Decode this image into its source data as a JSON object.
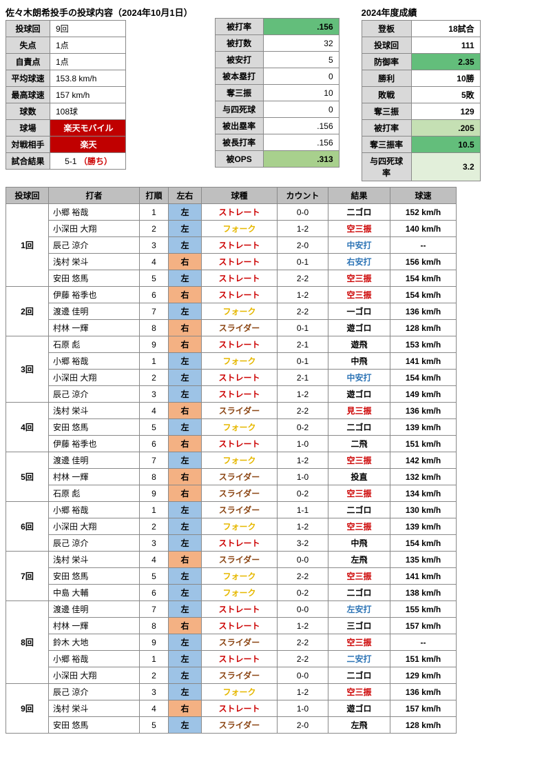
{
  "titles": {
    "left": "佐々木朗希投手の投球内容（2024年10月1日）",
    "right": "2024年度成績"
  },
  "summary1": [
    {
      "k": "投球回",
      "v": "9回"
    },
    {
      "k": "失点",
      "v": "1点"
    },
    {
      "k": "自責点",
      "v": "1点"
    },
    {
      "k": "平均球速",
      "v": "153.8 km/h"
    },
    {
      "k": "最高球速",
      "v": "157 km/h"
    },
    {
      "k": "球数",
      "v": "108球"
    },
    {
      "k": "球場",
      "v": "楽天モバイル",
      "red": true
    },
    {
      "k": "対戦相手",
      "v": "楽天",
      "red": true
    },
    {
      "k": "試合結果",
      "v": "5-1",
      "win": "（勝ち）"
    }
  ],
  "summary2": [
    {
      "k": "被打率",
      "v": ".156",
      "shade": "g1"
    },
    {
      "k": "被打数",
      "v": "32"
    },
    {
      "k": "被安打",
      "v": "5"
    },
    {
      "k": "被本塁打",
      "v": "0"
    },
    {
      "k": "奪三振",
      "v": "10"
    },
    {
      "k": "与四死球",
      "v": "0"
    },
    {
      "k": "被出塁率",
      "v": ".156"
    },
    {
      "k": "被長打率",
      "v": ".156"
    },
    {
      "k": "被OPS",
      "v": ".313",
      "shade": "g2"
    }
  ],
  "season": [
    {
      "k": "登板",
      "v": "18試合"
    },
    {
      "k": "投球回",
      "v": "111"
    },
    {
      "k": "防御率",
      "v": "2.35",
      "shade": "g1"
    },
    {
      "k": "勝利",
      "v": "10勝"
    },
    {
      "k": "敗戦",
      "v": "5敗"
    },
    {
      "k": "奪三振",
      "v": "129"
    },
    {
      "k": "被打率",
      "v": ".205",
      "shade": "g3"
    },
    {
      "k": "奪三振率",
      "v": "10.5",
      "shade": "g1"
    },
    {
      "k": "与四死球率",
      "v": "3.2",
      "shade": "g4"
    }
  ],
  "cols": [
    "投球回",
    "打者",
    "打順",
    "左右",
    "球種",
    "カウント",
    "結果",
    "球速"
  ],
  "pitches": [
    {
      "in": "1回",
      "b": "小郷 裕哉",
      "o": "1",
      "h": "左",
      "p": "ストレート",
      "pc": "st",
      "c": "0-0",
      "r": "二ゴロ",
      "rc": "n",
      "v": "152 km/h"
    },
    {
      "in": "",
      "b": "小深田 大翔",
      "o": "2",
      "h": "左",
      "p": "フォーク",
      "pc": "fk",
      "c": "1-2",
      "r": "空三振",
      "rc": "k",
      "v": "140 km/h"
    },
    {
      "in": "",
      "b": "辰己 涼介",
      "o": "3",
      "h": "左",
      "p": "ストレート",
      "pc": "st",
      "c": "2-0",
      "r": "中安打",
      "rc": "h",
      "v": "--"
    },
    {
      "in": "",
      "b": "浅村 栄斗",
      "o": "4",
      "h": "右",
      "p": "ストレート",
      "pc": "st",
      "c": "0-1",
      "r": "右安打",
      "rc": "h",
      "v": "156 km/h"
    },
    {
      "in": "",
      "b": "安田 悠馬",
      "o": "5",
      "h": "左",
      "p": "ストレート",
      "pc": "st",
      "c": "2-2",
      "r": "空三振",
      "rc": "k",
      "v": "154 km/h"
    },
    {
      "in": "2回",
      "b": "伊藤 裕季也",
      "o": "6",
      "h": "右",
      "p": "ストレート",
      "pc": "st",
      "c": "1-2",
      "r": "空三振",
      "rc": "k",
      "v": "154 km/h"
    },
    {
      "in": "",
      "b": "渡邊 佳明",
      "o": "7",
      "h": "左",
      "p": "フォーク",
      "pc": "fk",
      "c": "2-2",
      "r": "一ゴロ",
      "rc": "n",
      "v": "136 km/h"
    },
    {
      "in": "",
      "b": "村林 一輝",
      "o": "8",
      "h": "右",
      "p": "スライダー",
      "pc": "sl",
      "c": "0-1",
      "r": "遊ゴロ",
      "rc": "n",
      "v": "128 km/h"
    },
    {
      "in": "3回",
      "b": "石原 彪",
      "o": "9",
      "h": "右",
      "p": "ストレート",
      "pc": "st",
      "c": "2-1",
      "r": "遊飛",
      "rc": "n",
      "v": "153 km/h"
    },
    {
      "in": "",
      "b": "小郷 裕哉",
      "o": "1",
      "h": "左",
      "p": "フォーク",
      "pc": "fk",
      "c": "0-1",
      "r": "中飛",
      "rc": "n",
      "v": "141 km/h"
    },
    {
      "in": "",
      "b": "小深田 大翔",
      "o": "2",
      "h": "左",
      "p": "ストレート",
      "pc": "st",
      "c": "2-1",
      "r": "中安打",
      "rc": "h",
      "v": "154 km/h"
    },
    {
      "in": "",
      "b": "辰己 涼介",
      "o": "3",
      "h": "左",
      "p": "ストレート",
      "pc": "st",
      "c": "1-2",
      "r": "遊ゴロ",
      "rc": "n",
      "v": "149 km/h"
    },
    {
      "in": "4回",
      "b": "浅村 栄斗",
      "o": "4",
      "h": "右",
      "p": "スライダー",
      "pc": "sl",
      "c": "2-2",
      "r": "見三振",
      "rc": "k",
      "v": "136 km/h"
    },
    {
      "in": "",
      "b": "安田 悠馬",
      "o": "5",
      "h": "左",
      "p": "フォーク",
      "pc": "fk",
      "c": "0-2",
      "r": "二ゴロ",
      "rc": "n",
      "v": "139 km/h"
    },
    {
      "in": "",
      "b": "伊藤 裕季也",
      "o": "6",
      "h": "右",
      "p": "ストレート",
      "pc": "st",
      "c": "1-0",
      "r": "二飛",
      "rc": "n",
      "v": "151 km/h"
    },
    {
      "in": "5回",
      "b": "渡邊 佳明",
      "o": "7",
      "h": "左",
      "p": "フォーク",
      "pc": "fk",
      "c": "1-2",
      "r": "空三振",
      "rc": "k",
      "v": "142 km/h"
    },
    {
      "in": "",
      "b": "村林 一輝",
      "o": "8",
      "h": "右",
      "p": "スライダー",
      "pc": "sl",
      "c": "1-0",
      "r": "投直",
      "rc": "n",
      "v": "132 km/h"
    },
    {
      "in": "",
      "b": "石原 彪",
      "o": "9",
      "h": "右",
      "p": "スライダー",
      "pc": "sl",
      "c": "0-2",
      "r": "空三振",
      "rc": "k",
      "v": "134 km/h"
    },
    {
      "in": "6回",
      "b": "小郷 裕哉",
      "o": "1",
      "h": "左",
      "p": "スライダー",
      "pc": "sl",
      "c": "1-1",
      "r": "二ゴロ",
      "rc": "n",
      "v": "130 km/h"
    },
    {
      "in": "",
      "b": "小深田 大翔",
      "o": "2",
      "h": "左",
      "p": "フォーク",
      "pc": "fk",
      "c": "1-2",
      "r": "空三振",
      "rc": "k",
      "v": "139 km/h"
    },
    {
      "in": "",
      "b": "辰己 涼介",
      "o": "3",
      "h": "左",
      "p": "ストレート",
      "pc": "st",
      "c": "3-2",
      "r": "中飛",
      "rc": "n",
      "v": "154 km/h"
    },
    {
      "in": "7回",
      "b": "浅村 栄斗",
      "o": "4",
      "h": "右",
      "p": "スライダー",
      "pc": "sl",
      "c": "0-0",
      "r": "左飛",
      "rc": "n",
      "v": "135 km/h"
    },
    {
      "in": "",
      "b": "安田 悠馬",
      "o": "5",
      "h": "左",
      "p": "フォーク",
      "pc": "fk",
      "c": "2-2",
      "r": "空三振",
      "rc": "k",
      "v": "141 km/h"
    },
    {
      "in": "",
      "b": "中島 大輔",
      "o": "6",
      "h": "左",
      "p": "フォーク",
      "pc": "fk",
      "c": "0-2",
      "r": "二ゴロ",
      "rc": "n",
      "v": "138 km/h"
    },
    {
      "in": "8回",
      "b": "渡邊 佳明",
      "o": "7",
      "h": "左",
      "p": "ストレート",
      "pc": "st",
      "c": "0-0",
      "r": "左安打",
      "rc": "h",
      "v": "155 km/h"
    },
    {
      "in": "",
      "b": "村林 一輝",
      "o": "8",
      "h": "右",
      "p": "ストレート",
      "pc": "st",
      "c": "1-2",
      "r": "三ゴロ",
      "rc": "n",
      "v": "157 km/h"
    },
    {
      "in": "",
      "b": "鈴木 大地",
      "o": "9",
      "h": "左",
      "p": "スライダー",
      "pc": "sl",
      "c": "2-2",
      "r": "空三振",
      "rc": "k",
      "v": "--"
    },
    {
      "in": "",
      "b": "小郷 裕哉",
      "o": "1",
      "h": "左",
      "p": "ストレート",
      "pc": "st",
      "c": "2-2",
      "r": "二安打",
      "rc": "h",
      "v": "151 km/h"
    },
    {
      "in": "",
      "b": "小深田 大翔",
      "o": "2",
      "h": "左",
      "p": "スライダー",
      "pc": "sl",
      "c": "0-0",
      "r": "二ゴロ",
      "rc": "n",
      "v": "129 km/h"
    },
    {
      "in": "9回",
      "b": "辰己 涼介",
      "o": "3",
      "h": "左",
      "p": "フォーク",
      "pc": "fk",
      "c": "1-2",
      "r": "空三振",
      "rc": "k",
      "v": "136 km/h"
    },
    {
      "in": "",
      "b": "浅村 栄斗",
      "o": "4",
      "h": "右",
      "p": "ストレート",
      "pc": "st",
      "c": "1-0",
      "r": "遊ゴロ",
      "rc": "n",
      "v": "157 km/h"
    },
    {
      "in": "",
      "b": "安田 悠馬",
      "o": "5",
      "h": "左",
      "p": "スライダー",
      "pc": "sl",
      "c": "2-0",
      "r": "左飛",
      "rc": "n",
      "v": "128 km/h"
    }
  ],
  "inning_spans": {
    "1回": 5,
    "2回": 3,
    "3回": 4,
    "4回": 3,
    "5回": 3,
    "6回": 3,
    "7回": 3,
    "8回": 5,
    "9回": 3
  }
}
